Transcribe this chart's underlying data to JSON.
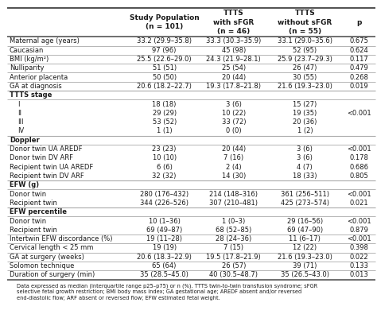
{
  "headers": [
    "",
    "Study Population\n(n = 101)",
    "TTTS\nwith sFGR\n(n = 46)",
    "TTTS\nwithout sFGR\n(n = 55)",
    "p"
  ],
  "rows": [
    [
      "Maternal age (years)",
      "33.2 (29.9–35.8)",
      "33.3 (30.3–35.9)",
      "33.1 (29.0–35.6)",
      "0.675"
    ],
    [
      "Caucasian",
      "97 (96)",
      "45 (98)",
      "52 (95)",
      "0.624"
    ],
    [
      "BMI (kg/m²)",
      "25.5 (22.6–29.0)",
      "24.3 (21.9–28.1)",
      "25.9 (23.7–29.3)",
      "0.117"
    ],
    [
      "Nulliparity",
      "51 (51)",
      "25 (54)",
      "26 (47)",
      "0.479"
    ],
    [
      "Anterior placenta",
      "50 (50)",
      "20 (44)",
      "30 (55)",
      "0.268"
    ],
    [
      "GA at diagnosis",
      "20.6 (18.2–22.7)",
      "19.3 (17.8–21.8)",
      "21.6 (19.3–23.0)",
      "0.019"
    ],
    [
      "TTTS stage",
      "",
      "",
      "",
      ""
    ],
    [
      "   I",
      "18 (18)",
      "3 (6)",
      "15 (27)",
      ""
    ],
    [
      "   II",
      "29 (29)",
      "10 (22)",
      "19 (35)",
      "<0.001"
    ],
    [
      "   III",
      "53 (52)",
      "33 (72)",
      "20 (36)",
      ""
    ],
    [
      "   IV",
      "1 (1)",
      "0 (0)",
      "1 (2)",
      ""
    ],
    [
      "Doppler",
      "",
      "",
      "",
      ""
    ],
    [
      "Donor twin UA AREDF",
      "23 (23)",
      "20 (44)",
      "3 (6)",
      "<0.001"
    ],
    [
      "Donor twin DV ARF",
      "10 (10)",
      "7 (16)",
      "3 (6)",
      "0.178"
    ],
    [
      "Recipient twin UA AREDF",
      "6 (6)",
      "2 (4)",
      "4 (7)",
      "0.686"
    ],
    [
      "Recipient twin DV ARF",
      "32 (32)",
      "14 (30)",
      "18 (33)",
      "0.805"
    ],
    [
      "EFW (g)",
      "",
      "",
      "",
      ""
    ],
    [
      "Donor twin",
      "280 (176–432)",
      "214 (148–316)",
      "361 (256–511)",
      "<0.001"
    ],
    [
      "Recipient twin",
      "344 (226–526)",
      "307 (210–481)",
      "425 (273–574)",
      "0.021"
    ],
    [
      "EFW percentile",
      "",
      "",
      "",
      ""
    ],
    [
      "Donor twin",
      "10 (1–36)",
      "1 (0–3)",
      "29 (16–56)",
      "<0.001"
    ],
    [
      "Recipient twin",
      "69 (49–87)",
      "68 (52–85)",
      "69 (47–90)",
      "0.879"
    ],
    [
      "Intertwin EFW discordance (%)",
      "19 (11–28)",
      "28 (24–36)",
      "11 (6–17)",
      "<0.001"
    ],
    [
      "Cervical length < 25 mm",
      "19 (19)",
      "7 (15)",
      "12 (22)",
      "0.398"
    ],
    [
      "GA at surgery (weeks)",
      "20.6 (18.3–22.9)",
      "19.5 (17.8–21.9)",
      "21.6 (19.3–23.0)",
      "0.022"
    ],
    [
      "Solomon technique",
      "65 (64)",
      "26 (57)",
      "39 (71)",
      "0.133"
    ],
    [
      "Duration of surgery (min)",
      "35 (28.5–45.0)",
      "40 (30.5–48.7)",
      "35 (26.5–43.0)",
      "0.013"
    ]
  ],
  "footnote": "Data expressed as median (interquartile range p25–p75) or n (%). TTTS twin-to-twin transfusion syndrome; sFGR\nselective fetal growth restriction; BMI body mass index; GA gestational age; AREDF absent and/or reversed\nend-diastolic flow; ARF absent or reversed flow; EFW estimated fetal weight.",
  "section_rows": [
    6,
    11,
    16,
    19
  ],
  "no_line_after": [
    7,
    8,
    9,
    12,
    13,
    14,
    17,
    20
  ],
  "p_center_rows": [
    8
  ],
  "bg_color": "#ffffff",
  "line_color_heavy": "#555555",
  "line_color_light": "#aaaaaa",
  "text_color": "#1a1a1a",
  "font_size": 6.0,
  "header_font_size": 6.5,
  "footnote_font_size": 4.8
}
